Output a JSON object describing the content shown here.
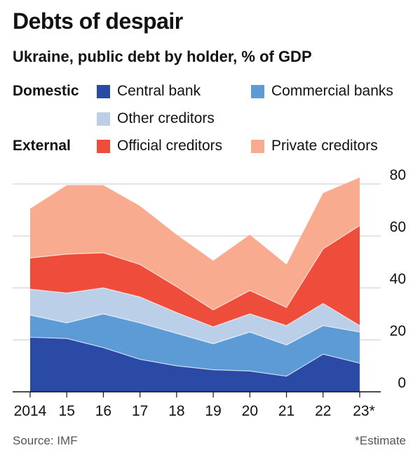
{
  "title": "Debts of despair",
  "subtitle": "Ukraine, public debt by holder, % of GDP",
  "legend": {
    "domestic_label": "Domestic",
    "external_label": "External",
    "items": [
      {
        "name": "Central bank",
        "color": "#2b4aa6"
      },
      {
        "name": "Commercial banks",
        "color": "#5d9bd7"
      },
      {
        "name": "Other creditors",
        "color": "#bccfe9"
      },
      {
        "name": "Official creditors",
        "color": "#ef4d3b"
      },
      {
        "name": "Private creditors",
        "color": "#f9ab90"
      }
    ]
  },
  "source": "Source: IMF",
  "note": "*Estimate",
  "chart_data": {
    "type": "area",
    "stacked": true,
    "x": [
      "2014",
      "15",
      "16",
      "17",
      "18",
      "19",
      "20",
      "21",
      "22",
      "23*"
    ],
    "ylim": [
      0,
      80
    ],
    "yticks": [
      0,
      20,
      40,
      60,
      80
    ],
    "grid": true,
    "legend_placement": "top",
    "series": [
      {
        "name": "Central bank",
        "color": "#2b4aa6",
        "values": [
          21,
          20.5,
          17,
          12.5,
          10,
          8.5,
          8,
          6,
          14.5,
          11
        ]
      },
      {
        "name": "Commercial banks",
        "color": "#5d9bd7",
        "values": [
          8.5,
          6,
          13,
          14,
          12.5,
          10,
          15,
          12,
          11,
          12
        ]
      },
      {
        "name": "Other creditors",
        "color": "#bccfe9",
        "values": [
          10,
          11.5,
          10,
          10,
          8,
          6.5,
          7,
          7.5,
          8.5,
          2.5
        ]
      },
      {
        "name": "Official creditors",
        "color": "#ef4d3b",
        "values": [
          12,
          15,
          13.5,
          12.5,
          10,
          6.5,
          9,
          7,
          21,
          38.5
        ]
      },
      {
        "name": "Private creditors",
        "color": "#f9ab90",
        "values": [
          19,
          26.5,
          26,
          22.5,
          20,
          19,
          21.5,
          16.5,
          21.5,
          18.5
        ]
      }
    ]
  }
}
